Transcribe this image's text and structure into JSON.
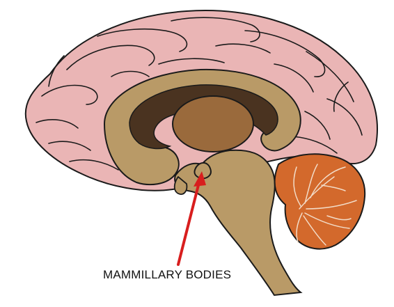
{
  "diagram": {
    "label": "MAMMILLARY BODIES",
    "colors": {
      "cortex_fill": "#eab5b5",
      "outline": "#1a1a1a",
      "corpus_callosum": "#b99a67",
      "ventricle": "#4a3320",
      "thalamus": "#9a6a3c",
      "brainstem": "#b99a67",
      "cerebellum": "#d3692c",
      "arbor_vitae": "#f2dcc8",
      "arrow": "#d81e1e",
      "label_text": "#111111"
    },
    "icons": {
      "pointer": "red-arrow-icon"
    }
  }
}
